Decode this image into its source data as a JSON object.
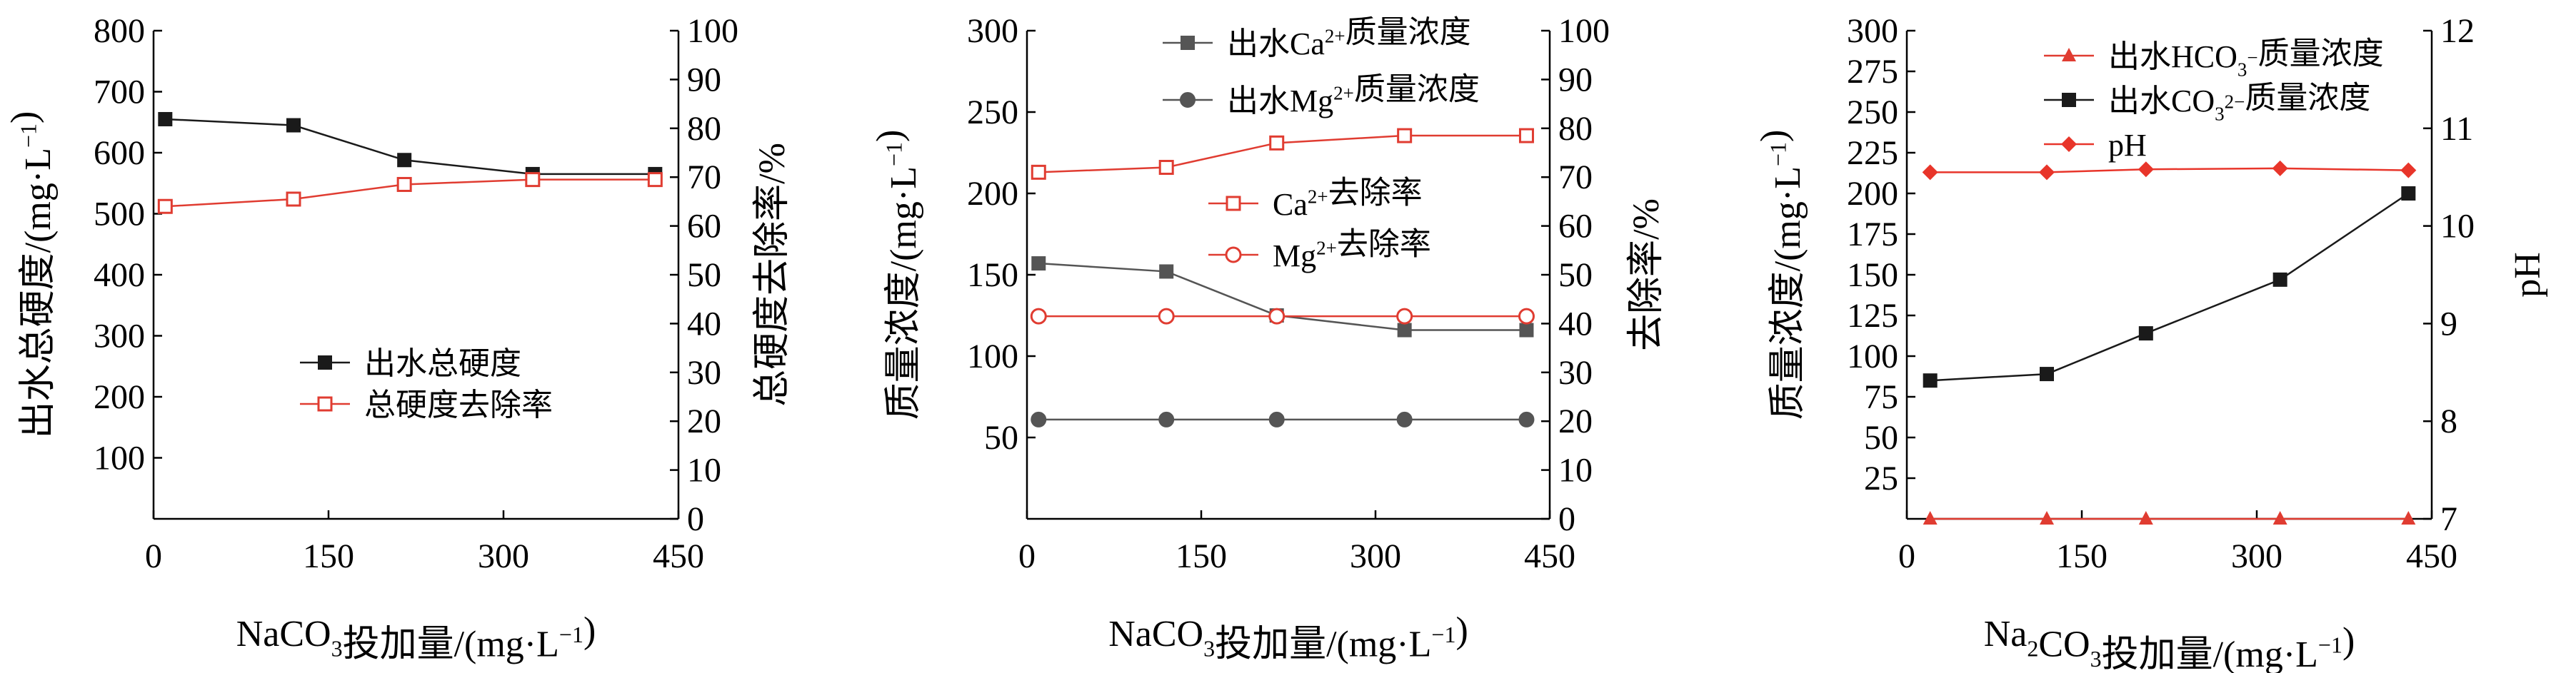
{
  "colors": {
    "black": "#1a1a1a",
    "gray": "#555555",
    "red": "#e03c31",
    "red_diamond": "#e8352a"
  },
  "chart_data": [
    {
      "type": "line",
      "xlabel": {
        "pre": "NaCO",
        "sub": "3",
        "post": "投加量/(mg·L",
        "sup": "−1",
        "end": ")"
      },
      "ylabel_left": {
        "pre": "出水总硬度/(mg·L",
        "sup": "−1",
        "end": ")"
      },
      "ylabel_right": "总硬度去除率/%",
      "xlim": [
        0,
        450
      ],
      "x_ticks": [
        "0",
        "150",
        "300",
        "450"
      ],
      "ylim_left": [
        0,
        800
      ],
      "y_ticks_left": [
        "100",
        "200",
        "300",
        "400",
        "500",
        "600",
        "700",
        "800"
      ],
      "ylim_right": [
        0,
        100
      ],
      "y_ticks_right": [
        "0",
        "10",
        "20",
        "30",
        "40",
        "50",
        "60",
        "70",
        "80",
        "90",
        "100"
      ],
      "series": [
        {
          "name": "出水总硬度",
          "axis": "left",
          "marker": "square-filled",
          "color": "black",
          "x": [
            10,
            120,
            215,
            325,
            430
          ],
          "y": [
            655,
            645,
            588,
            565,
            565
          ]
        },
        {
          "name": "总硬度去除率",
          "axis": "right",
          "marker": "square-open",
          "color": "red",
          "x": [
            10,
            120,
            215,
            325,
            430
          ],
          "y": [
            64,
            65.5,
            68.5,
            69.5,
            69.5
          ]
        }
      ],
      "legend": [
        "出水总硬度",
        "总硬度去除率"
      ]
    },
    {
      "type": "line",
      "xlabel": {
        "pre": "NaCO",
        "sub": "3",
        "post": "投加量/(mg·L",
        "sup": "−1",
        "end": ")"
      },
      "ylabel_left": {
        "pre": "质量浓度/(mg·L",
        "sup": "−1",
        "end": ")"
      },
      "ylabel_right": "去除率/%",
      "xlim": [
        0,
        450
      ],
      "x_ticks": [
        "0",
        "150",
        "300",
        "450"
      ],
      "ylim_left": [
        0,
        300
      ],
      "y_ticks_left": [
        "50",
        "100",
        "150",
        "200",
        "250",
        "300"
      ],
      "ylim_right": [
        0,
        100
      ],
      "y_ticks_right": [
        "0",
        "10",
        "20",
        "30",
        "40",
        "50",
        "60",
        "70",
        "80",
        "90",
        "100"
      ],
      "series": [
        {
          "name": "出水Ca质量浓度",
          "axis": "left",
          "marker": "square-filled",
          "color": "gray",
          "x": [
            10,
            120,
            215,
            325,
            430
          ],
          "y": [
            157,
            152,
            125,
            116,
            116
          ]
        },
        {
          "name": "出水Mg质量浓度",
          "axis": "left",
          "marker": "circle-filled",
          "color": "gray",
          "x": [
            10,
            120,
            215,
            325,
            430
          ],
          "y": [
            61,
            61,
            61,
            61,
            61
          ]
        },
        {
          "name": "Ca去除率",
          "axis": "right",
          "marker": "square-open",
          "color": "red",
          "x": [
            10,
            120,
            215,
            325,
            430
          ],
          "y": [
            71,
            72,
            77,
            78.5,
            78.5
          ]
        },
        {
          "name": "Mg去除率",
          "axis": "right",
          "marker": "circle-open",
          "color": "red",
          "x": [
            10,
            120,
            215,
            325,
            430
          ],
          "y": [
            41.5,
            41.5,
            41.5,
            41.5,
            41.5
          ]
        }
      ],
      "legend": [
        {
          "pre": "出水Ca",
          "sup": "2+",
          "post": "质量浓度"
        },
        {
          "pre": "出水Mg",
          "sup": "2+",
          "post": "质量浓度"
        },
        {
          "pre": "Ca",
          "sup": "2+",
          "post": "去除率"
        },
        {
          "pre": "Mg",
          "sup": "2+",
          "post": "去除率"
        }
      ]
    },
    {
      "type": "line",
      "xlabel": {
        "pre": "Na",
        "sub": "2",
        "mid": "CO",
        "sub2": "3",
        "post": "投加量/(mg·L",
        "sup": "−1",
        "end": ")"
      },
      "ylabel_left": {
        "pre": "质量浓度/(mg·L",
        "sup": "−1",
        "end": ")"
      },
      "ylabel_right": "pH",
      "xlim": [
        0,
        450
      ],
      "x_ticks": [
        "0",
        "150",
        "300",
        "450"
      ],
      "ylim_left": [
        0,
        300
      ],
      "y_ticks_left": [
        "25",
        "50",
        "75",
        "100",
        "125",
        "150",
        "175",
        "200",
        "225",
        "250",
        "275",
        "300"
      ],
      "ylim_right": [
        7,
        12
      ],
      "y_ticks_right": [
        "7",
        "8",
        "9",
        "10",
        "11",
        "12"
      ],
      "series": [
        {
          "name": "出水HCO3质量浓度",
          "axis": "left",
          "marker": "triangle-filled",
          "color": "red",
          "x": [
            20,
            120,
            205,
            320,
            430
          ],
          "y": [
            0,
            0,
            0,
            0,
            0
          ]
        },
        {
          "name": "出水CO3质量浓度",
          "axis": "left",
          "marker": "square-filled",
          "color": "black",
          "x": [
            20,
            120,
            205,
            320,
            430
          ],
          "y": [
            85,
            89,
            114,
            147,
            200
          ]
        },
        {
          "name": "pH",
          "axis": "right",
          "marker": "diamond-filled",
          "color": "red_diamond",
          "x": [
            20,
            120,
            205,
            320,
            430
          ],
          "y": [
            10.55,
            10.55,
            10.58,
            10.59,
            10.57
          ]
        }
      ],
      "legend": [
        {
          "pre": "出水HCO",
          "sub": "3",
          "sup": "−",
          "post": "质量浓度"
        },
        {
          "pre": "出水CO",
          "sub": "3",
          "sup": "2−",
          "post": "质量浓度"
        },
        {
          "pre": "pH"
        }
      ]
    }
  ]
}
